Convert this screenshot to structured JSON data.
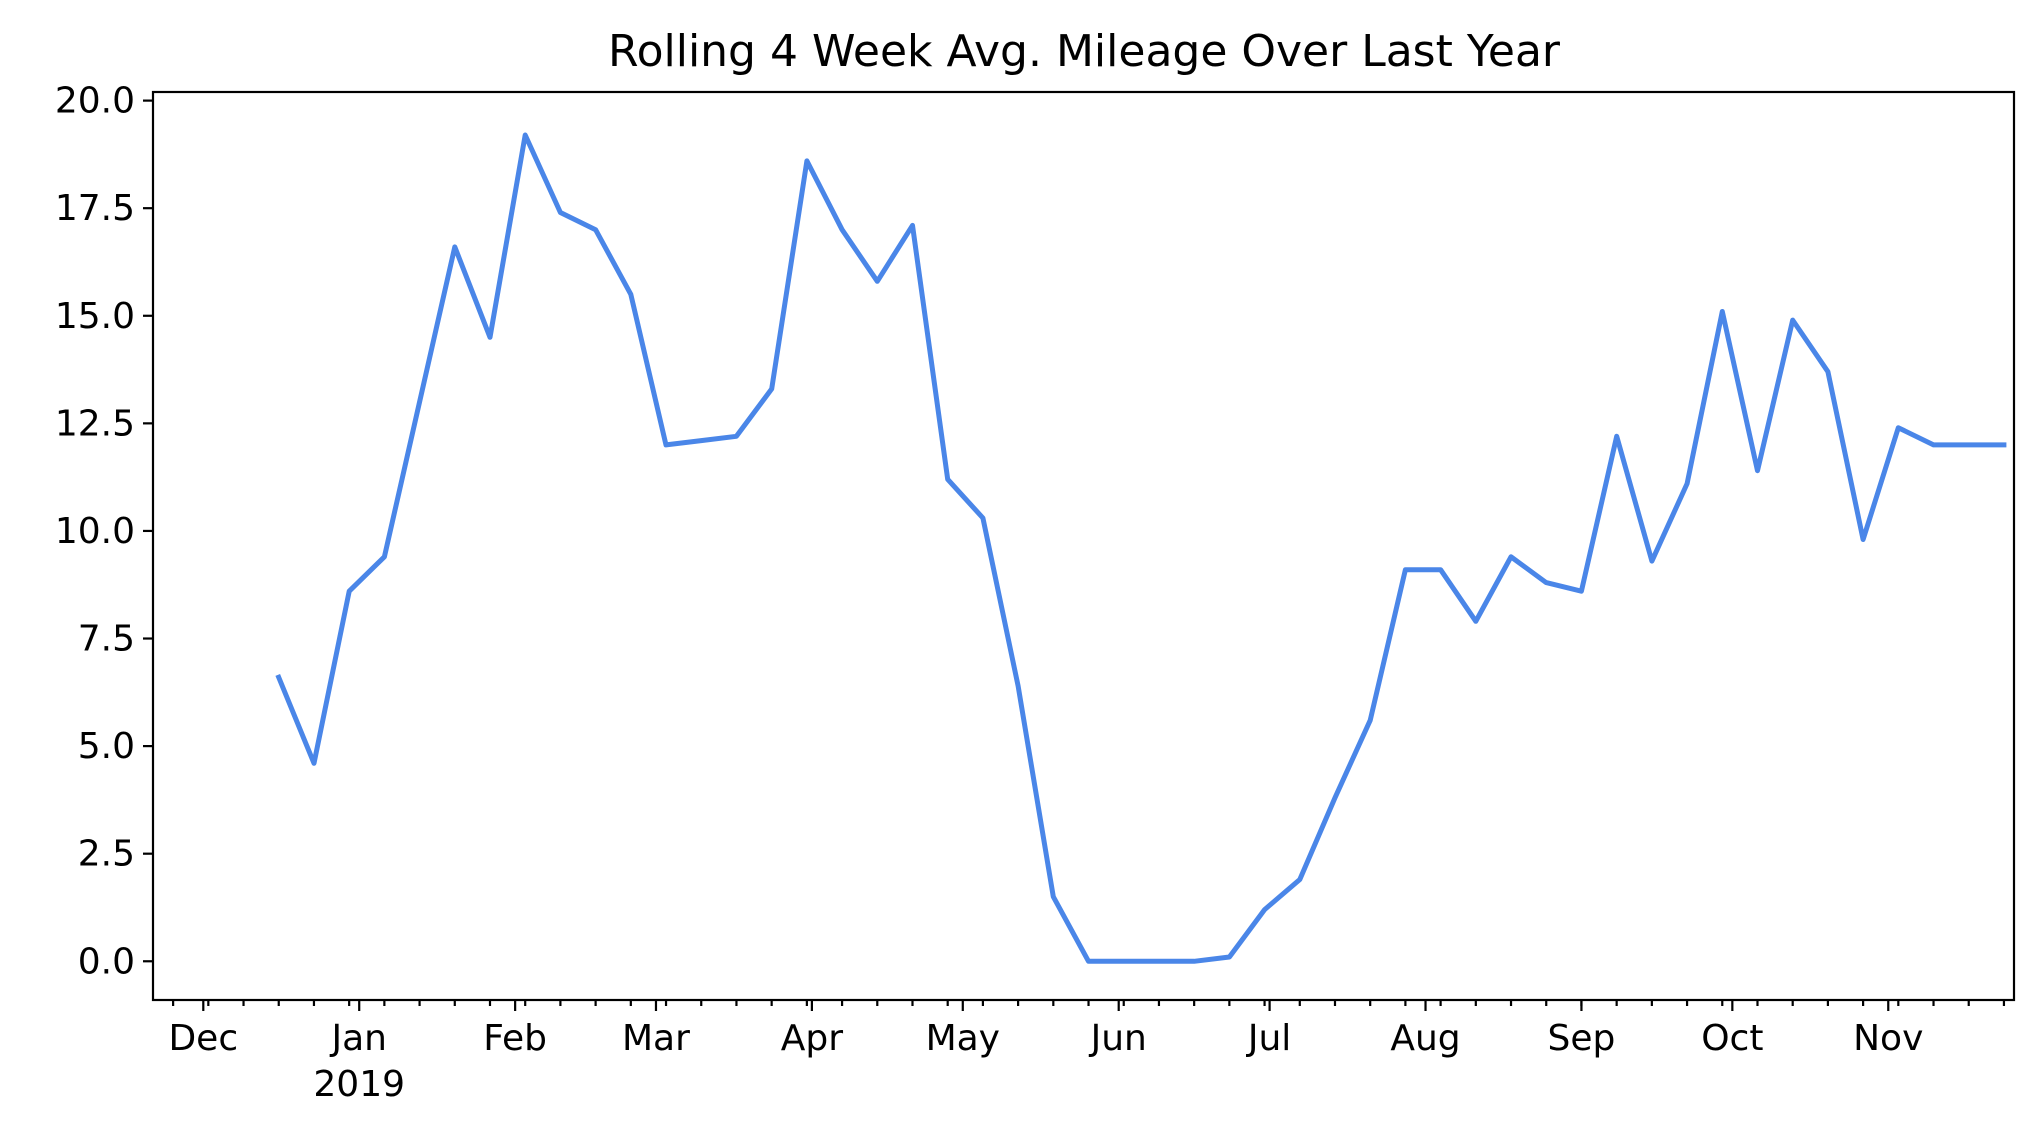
{
  "chart_data": {
    "type": "line",
    "title": "Rolling 4 Week Avg. Mileage Over Last Year",
    "xlabel": "",
    "ylabel": "",
    "xlim": [
      "2018-11-21",
      "2019-11-26"
    ],
    "ylim": [
      -0.9,
      20.2
    ],
    "grid": false,
    "legend": "none",
    "y_ticks": [
      0.0,
      2.5,
      5.0,
      7.5,
      10.0,
      12.5,
      15.0,
      17.5,
      20.0
    ],
    "y_tick_labels": [
      "0.0",
      "2.5",
      "5.0",
      "7.5",
      "10.0",
      "12.5",
      "15.0",
      "17.5",
      "20.0"
    ],
    "x_major_ticks": [
      {
        "date": "2018-12-01",
        "label": "Dec",
        "sublabel": ""
      },
      {
        "date": "2019-01-01",
        "label": "Jan",
        "sublabel": "2019"
      },
      {
        "date": "2019-02-01",
        "label": "Feb",
        "sublabel": ""
      },
      {
        "date": "2019-03-01",
        "label": "Mar",
        "sublabel": ""
      },
      {
        "date": "2019-04-01",
        "label": "Apr",
        "sublabel": ""
      },
      {
        "date": "2019-05-01",
        "label": "May",
        "sublabel": ""
      },
      {
        "date": "2019-06-01",
        "label": "Jun",
        "sublabel": ""
      },
      {
        "date": "2019-07-01",
        "label": "Jul",
        "sublabel": ""
      },
      {
        "date": "2019-08-01",
        "label": "Aug",
        "sublabel": ""
      },
      {
        "date": "2019-09-01",
        "label": "Sep",
        "sublabel": ""
      },
      {
        "date": "2019-10-01",
        "label": "Oct",
        "sublabel": ""
      },
      {
        "date": "2019-11-01",
        "label": "Nov",
        "sublabel": ""
      }
    ],
    "series": [
      {
        "color": "#4a86e8",
        "x": [
          "2018-12-16",
          "2018-12-23",
          "2018-12-30",
          "2019-01-06",
          "2019-01-13",
          "2019-01-20",
          "2019-01-27",
          "2019-02-03",
          "2019-02-10",
          "2019-02-17",
          "2019-02-24",
          "2019-03-03",
          "2019-03-10",
          "2019-03-17",
          "2019-03-24",
          "2019-03-31",
          "2019-04-07",
          "2019-04-14",
          "2019-04-21",
          "2019-04-28",
          "2019-05-05",
          "2019-05-12",
          "2019-05-19",
          "2019-05-26",
          "2019-06-02",
          "2019-06-09",
          "2019-06-16",
          "2019-06-23",
          "2019-06-30",
          "2019-07-07",
          "2019-07-14",
          "2019-07-21",
          "2019-07-28",
          "2019-08-04",
          "2019-08-11",
          "2019-08-18",
          "2019-08-25",
          "2019-09-01",
          "2019-09-08",
          "2019-09-15",
          "2019-09-22",
          "2019-09-29",
          "2019-10-06",
          "2019-10-13",
          "2019-10-20",
          "2019-10-27",
          "2019-11-03",
          "2019-11-10",
          "2019-11-17",
          "2019-11-24"
        ],
        "values": [
          6.6,
          4.6,
          8.6,
          9.4,
          13.0,
          16.6,
          14.5,
          19.2,
          17.4,
          17.0,
          15.5,
          12.0,
          12.1,
          12.2,
          13.3,
          18.6,
          17.0,
          15.8,
          17.1,
          11.2,
          10.3,
          6.4,
          1.5,
          0.0,
          0.0,
          0.0,
          0.0,
          0.1,
          1.2,
          1.9,
          3.8,
          5.6,
          9.1,
          9.1,
          7.9,
          9.4,
          8.8,
          8.6,
          12.2,
          9.3,
          11.1,
          15.1,
          11.4,
          14.9,
          13.7,
          9.8,
          12.4,
          12.0,
          12.0,
          12.0
        ]
      }
    ]
  }
}
